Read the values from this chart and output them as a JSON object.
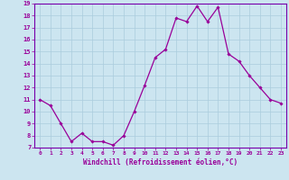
{
  "x": [
    0,
    1,
    2,
    3,
    4,
    5,
    6,
    7,
    8,
    9,
    10,
    11,
    12,
    13,
    14,
    15,
    16,
    17,
    18,
    19,
    20,
    21,
    22,
    23
  ],
  "y": [
    11.0,
    10.5,
    9.0,
    7.5,
    8.2,
    7.5,
    7.5,
    7.2,
    8.0,
    10.0,
    12.2,
    14.5,
    15.2,
    17.8,
    17.5,
    18.8,
    17.5,
    18.7,
    14.8,
    14.2,
    13.0,
    12.0,
    11.0,
    10.7
  ],
  "line_color": "#990099",
  "marker": "D",
  "marker_size": 1.8,
  "bg_color": "#cce5f0",
  "grid_color": "#aaccdd",
  "xlabel": "Windchill (Refroidissement éolien,°C)",
  "xlim": [
    -0.5,
    23.5
  ],
  "ylim": [
    7,
    19
  ],
  "yticks": [
    7,
    8,
    9,
    10,
    11,
    12,
    13,
    14,
    15,
    16,
    17,
    18,
    19
  ],
  "xticks": [
    0,
    1,
    2,
    3,
    4,
    5,
    6,
    7,
    8,
    9,
    10,
    11,
    12,
    13,
    14,
    15,
    16,
    17,
    18,
    19,
    20,
    21,
    22,
    23
  ],
  "tick_color": "#990099",
  "label_color": "#990099",
  "spine_color": "#7700aa"
}
